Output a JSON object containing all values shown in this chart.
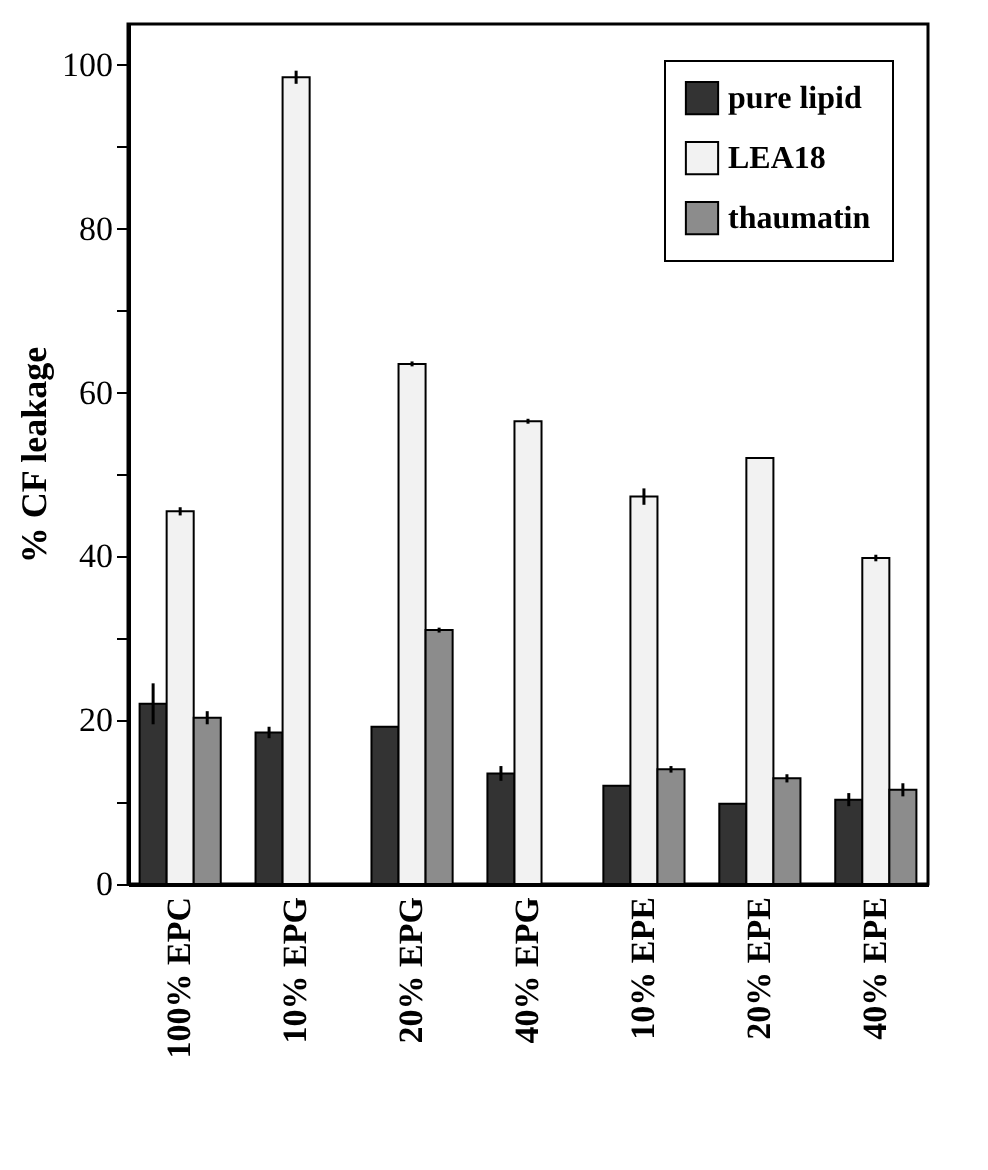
{
  "chart_data": {
    "type": "bar",
    "ylabel": "% CF leakage",
    "categories": [
      "100% EPC",
      "10% EPG",
      "20% EPG",
      "40% EPG",
      "10% EPE",
      "20% EPE",
      "40% EPE"
    ],
    "series": [
      {
        "name": "pure lipid",
        "color": "#333333",
        "values": [
          22,
          18.5,
          19.2,
          13.5,
          12,
          9.8,
          10.3
        ],
        "errors": [
          2.5,
          0.7,
          null,
          0.9,
          null,
          null,
          0.8
        ]
      },
      {
        "name": "LEA18",
        "color": "#f2f2f2",
        "values": [
          45.5,
          98.5,
          63.5,
          56.5,
          47.3,
          52,
          39.8
        ],
        "errors": [
          0.5,
          0.8,
          0.3,
          0.3,
          1,
          null,
          0.4
        ]
      },
      {
        "name": "thaumatin",
        "color": "#8c8c8c",
        "values": [
          20.3,
          null,
          31,
          null,
          14,
          12.9,
          11.5
        ],
        "errors": [
          0.8,
          null,
          0.3,
          null,
          0.4,
          0.5,
          0.8
        ]
      }
    ],
    "ylim": [
      0,
      105
    ],
    "yticks": [
      0,
      {
        "value": 10,
        "label": null
      },
      20,
      {
        "value": 30,
        "label": null
      },
      40,
      {
        "value": 50,
        "label": null
      },
      60,
      {
        "value": 70,
        "label": null
      },
      80,
      {
        "value": 90,
        "label": null
      },
      100
    ],
    "legend": "top right",
    "grid": false
  }
}
